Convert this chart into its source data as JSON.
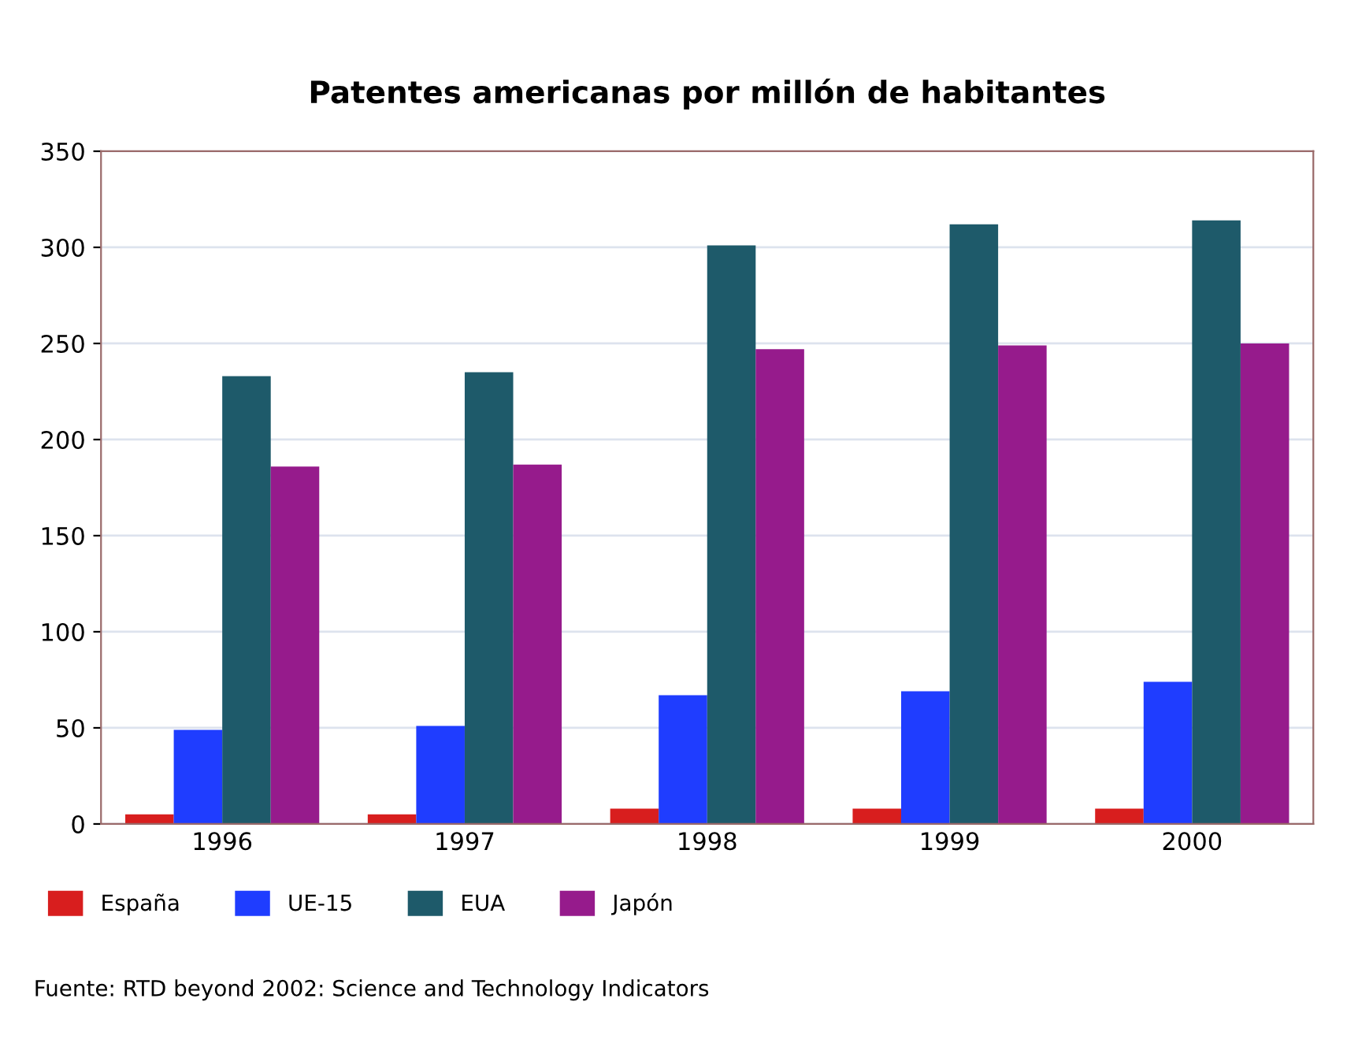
{
  "chart_data": {
    "type": "bar",
    "title": "Patentes americanas por millón de habitantes",
    "categories": [
      "1996",
      "1997",
      "1998",
      "1999",
      "2000"
    ],
    "series": [
      {
        "name": "España",
        "color": "#d81e1e",
        "values": [
          5,
          5,
          8,
          8,
          8
        ]
      },
      {
        "name": "UE-15",
        "color": "#1f3dff",
        "values": [
          49,
          51,
          67,
          69,
          74
        ]
      },
      {
        "name": "EUA",
        "color": "#1e5a6a",
        "values": [
          233,
          235,
          301,
          312,
          314
        ]
      },
      {
        "name": "Japón",
        "color": "#961b8c",
        "values": [
          186,
          187,
          247,
          249,
          250
        ]
      }
    ],
    "ylim": [
      0,
      350
    ],
    "yticks": [
      0,
      50,
      100,
      150,
      200,
      250,
      300,
      350
    ],
    "grid": "y",
    "legend": "bottom left",
    "annotations": [
      "Fuente: RTD beyond 2002: Science and Technology Indicators"
    ]
  }
}
